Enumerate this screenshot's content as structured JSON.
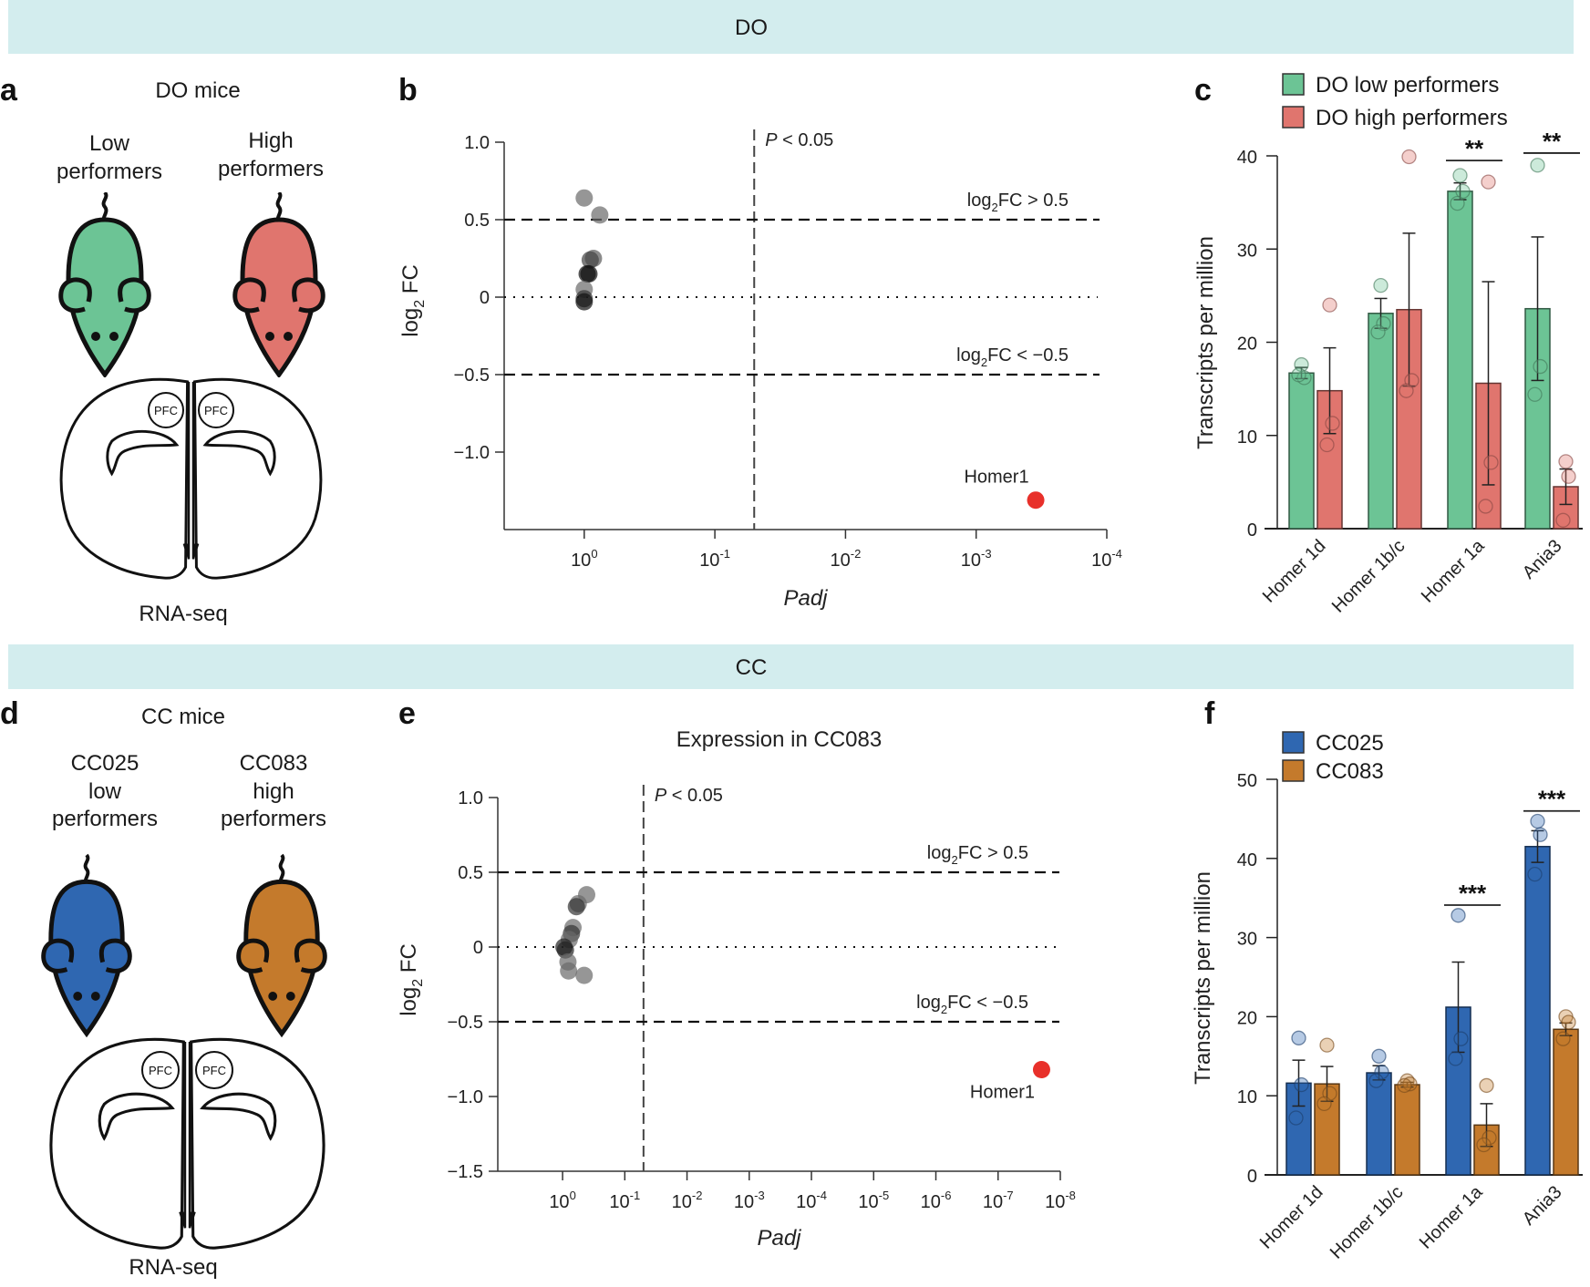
{
  "banners": {
    "do": "DO",
    "cc": "CC",
    "color": "#d3edee"
  },
  "panel_labels": {
    "a": "a",
    "b": "b",
    "c": "c",
    "d": "d",
    "e": "e",
    "f": "f"
  },
  "panel_a": {
    "title": "DO mice",
    "group_low": [
      "Low",
      "performers"
    ],
    "group_high": [
      "High",
      "performers"
    ],
    "region": "PFC",
    "method": "RNA-seq",
    "colors": {
      "low": "#6cc495",
      "high": "#e0756e"
    }
  },
  "panel_d": {
    "title": "CC mice",
    "group_low": [
      "CC025",
      "low",
      "performers"
    ],
    "group_high": [
      "CC083",
      "high",
      "performers"
    ],
    "region": "PFC",
    "method": "RNA-seq",
    "colors": {
      "low": "#2f67b1",
      "high": "#c47a2c"
    }
  },
  "chart_data": [
    {
      "panel": "b",
      "type": "scatter",
      "title": "",
      "xlabel": "Padj",
      "ylabel": {
        "base": "log",
        "sub": "2",
        "rest": " FC"
      },
      "x_scale": "log, reversed",
      "xlim": [
        4.1,
        0.0001
      ],
      "ylim": [
        -1.5,
        1.0
      ],
      "grid": false,
      "x_ticks": [
        {
          "value": 1,
          "base": "10",
          "exp": "0"
        },
        {
          "value": 0.1,
          "base": "10",
          "exp": "-1"
        },
        {
          "value": 0.01,
          "base": "10",
          "exp": "-2"
        },
        {
          "value": 0.001,
          "base": "10",
          "exp": "-3"
        },
        {
          "value": 0.0001,
          "base": "10",
          "exp": "-4"
        }
      ],
      "y_ticks": [
        {
          "value": 1.0,
          "label": "1.0"
        },
        {
          "value": 0.5,
          "label": "0.5"
        },
        {
          "value": 0,
          "label": "0"
        },
        {
          "value": -0.5,
          "label": "−0.5"
        },
        {
          "value": -1.0,
          "label": "−1.0"
        }
      ],
      "reference_lines": [
        {
          "axis": "x",
          "value": 0.05,
          "style": "dashed",
          "label": {
            "italic": "P",
            "rest": " < 0.05"
          }
        },
        {
          "axis": "y",
          "value": 0.5,
          "style": "dashed",
          "label": {
            "base": "log",
            "sub": "2",
            "rest": "FC > 0.5"
          }
        },
        {
          "axis": "y",
          "value": -0.5,
          "style": "dashed",
          "label": {
            "base": "log",
            "sub": "2",
            "rest": "FC < −0.5"
          }
        },
        {
          "axis": "y",
          "value": 0,
          "style": "dotted"
        }
      ],
      "points": [
        {
          "padj": 1.0,
          "log2fc": 0.64,
          "color": "#6a6a6a"
        },
        {
          "padj": 0.76,
          "log2fc": 0.53,
          "color": "#6a6a6a"
        },
        {
          "padj": 0.85,
          "log2fc": 0.25,
          "color": "#5a5a5a"
        },
        {
          "padj": 0.9,
          "log2fc": 0.24,
          "color": "#444444"
        },
        {
          "padj": 0.92,
          "log2fc": 0.15,
          "color": "#111111"
        },
        {
          "padj": 0.95,
          "log2fc": 0.15,
          "color": "#111111"
        },
        {
          "padj": 1.0,
          "log2fc": 0.05,
          "color": "#6a6a6a"
        },
        {
          "padj": 1.0,
          "log2fc": -0.01,
          "color": "#333333"
        },
        {
          "padj": 1.0,
          "log2fc": -0.03,
          "color": "#111111"
        },
        {
          "padj": 0.00035,
          "log2fc": -1.31,
          "color": "#e8302a",
          "label": "Homer1",
          "label_position": "above-left"
        }
      ]
    },
    {
      "panel": "c",
      "type": "bar",
      "categories": [
        "Homer 1d",
        "Homer 1b/c",
        "Homer 1a",
        "Ania3"
      ],
      "ylabel": "Transcripts per million",
      "ylim": [
        0,
        40
      ],
      "y_ticks": [
        0,
        10,
        20,
        30,
        40
      ],
      "legend": "top",
      "series": [
        {
          "name": "DO low performers",
          "color": "#6cc495",
          "values": [
            16.7,
            23.1,
            36.2,
            23.6
          ],
          "errors": [
            0.6,
            1.6,
            0.9,
            7.7
          ],
          "points": [
            [
              17.6,
              16.2,
              16.5
            ],
            [
              26.1,
              22.0,
              21.1
            ],
            [
              37.9,
              36.2,
              34.9
            ],
            [
              39.0,
              17.4,
              14.4
            ]
          ]
        },
        {
          "name": "DO high performers",
          "color": "#e0756e",
          "values": [
            14.8,
            23.5,
            15.6,
            4.5
          ],
          "errors": [
            4.6,
            8.2,
            10.9,
            1.9
          ],
          "points": [
            [
              24.0,
              11.3,
              9.0
            ],
            [
              39.9,
              15.9,
              14.8
            ],
            [
              37.2,
              7.1,
              2.4
            ],
            [
              7.2,
              5.6,
              0.9
            ]
          ]
        }
      ],
      "significance": [
        {
          "category": 2,
          "label": "**",
          "level": 39.5
        },
        {
          "category": 3,
          "label": "**",
          "level": 40.3
        }
      ]
    },
    {
      "panel": "e",
      "type": "scatter",
      "title": "Expression in CC083",
      "xlabel": "Padj",
      "ylabel": {
        "base": "log",
        "sub": "2",
        "rest": " FC"
      },
      "x_scale": "log, reversed",
      "xlim": [
        11,
        1e-08
      ],
      "ylim": [
        -1.5,
        1.0
      ],
      "grid": false,
      "x_ticks": [
        {
          "value": 1,
          "base": "10",
          "exp": "0"
        },
        {
          "value": 0.1,
          "base": "10",
          "exp": "-1"
        },
        {
          "value": 0.01,
          "base": "10",
          "exp": "-2"
        },
        {
          "value": 0.001,
          "base": "10",
          "exp": "-3"
        },
        {
          "value": 0.0001,
          "base": "10",
          "exp": "-4"
        },
        {
          "value": 1e-05,
          "base": "10",
          "exp": "-5"
        },
        {
          "value": 1e-06,
          "base": "10",
          "exp": "-6"
        },
        {
          "value": 1e-07,
          "base": "10",
          "exp": "-7"
        },
        {
          "value": 1e-08,
          "base": "10",
          "exp": "-8"
        }
      ],
      "y_ticks": [
        {
          "value": 1.0,
          "label": "1.0"
        },
        {
          "value": 0.5,
          "label": "0.5"
        },
        {
          "value": 0,
          "label": "0"
        },
        {
          "value": -0.5,
          "label": "−0.5"
        },
        {
          "value": -1.0,
          "label": "−1.0"
        },
        {
          "value": -1.5,
          "label": "−1.5"
        }
      ],
      "reference_lines": [
        {
          "axis": "x",
          "value": 0.05,
          "style": "dashed",
          "label": {
            "italic": "P",
            "rest": " < 0.05"
          }
        },
        {
          "axis": "y",
          "value": 0.5,
          "style": "dashed",
          "label": {
            "base": "log",
            "sub": "2",
            "rest": "FC > 0.5"
          }
        },
        {
          "axis": "y",
          "value": -0.5,
          "style": "dashed",
          "label": {
            "base": "log",
            "sub": "2",
            "rest": "FC < −0.5"
          }
        },
        {
          "axis": "y",
          "value": 0,
          "style": "dotted"
        }
      ],
      "points": [
        {
          "padj": 0.41,
          "log2fc": 0.35,
          "color": "#6a6a6a"
        },
        {
          "padj": 0.56,
          "log2fc": 0.29,
          "color": "#6a6a6a"
        },
        {
          "padj": 0.6,
          "log2fc": 0.27,
          "color": "#333333"
        },
        {
          "padj": 0.68,
          "log2fc": 0.13,
          "color": "#6a6a6a"
        },
        {
          "padj": 0.72,
          "log2fc": 0.09,
          "color": "#333333"
        },
        {
          "padj": 0.78,
          "log2fc": 0.05,
          "color": "#6a6a6a"
        },
        {
          "padj": 0.95,
          "log2fc": 0.0,
          "color": "#222222"
        },
        {
          "padj": 0.9,
          "log2fc": -0.02,
          "color": "#222222"
        },
        {
          "padj": 0.82,
          "log2fc": -0.1,
          "color": "#6a6a6a"
        },
        {
          "padj": 0.8,
          "log2fc": -0.16,
          "color": "#6a6a6a"
        },
        {
          "padj": 0.45,
          "log2fc": -0.19,
          "color": "#6a6a6a"
        },
        {
          "padj": 2e-08,
          "log2fc": -0.82,
          "color": "#e8302a",
          "label": "Homer1",
          "label_position": "below-left"
        }
      ]
    },
    {
      "panel": "f",
      "type": "bar",
      "categories": [
        "Homer 1d",
        "Homer 1b/c",
        "Homer 1a",
        "Ania3"
      ],
      "ylabel": "Transcripts per million",
      "ylim": [
        0,
        50
      ],
      "y_ticks": [
        0,
        10,
        20,
        30,
        40,
        50
      ],
      "legend": "top-left",
      "series": [
        {
          "name": "CC025",
          "color": "#2f67b1",
          "values": [
            11.6,
            12.9,
            21.2,
            41.5
          ],
          "errors": [
            2.9,
            0.9,
            5.7,
            2.0
          ],
          "points": [
            [
              17.3,
              11.4,
              7.2
            ],
            [
              15.0,
              13.0,
              11.9
            ],
            [
              32.8,
              17.2,
              14.7
            ],
            [
              44.7,
              43.0,
              38.0
            ]
          ]
        },
        {
          "name": "CC083",
          "color": "#c47a2c",
          "values": [
            11.5,
            11.4,
            6.3,
            18.4
          ],
          "errors": [
            2.2,
            0.3,
            2.7,
            0.8
          ],
          "points": [
            [
              16.4,
              10.3,
              9.0
            ],
            [
              11.9,
              11.5,
              11.3
            ],
            [
              11.3,
              4.7,
              3.8
            ],
            [
              20.0,
              19.3,
              17.2
            ]
          ]
        }
      ],
      "significance": [
        {
          "category": 2,
          "label": "***",
          "level": 34.1
        },
        {
          "category": 3,
          "label": "***",
          "level": 46.0
        }
      ]
    }
  ]
}
